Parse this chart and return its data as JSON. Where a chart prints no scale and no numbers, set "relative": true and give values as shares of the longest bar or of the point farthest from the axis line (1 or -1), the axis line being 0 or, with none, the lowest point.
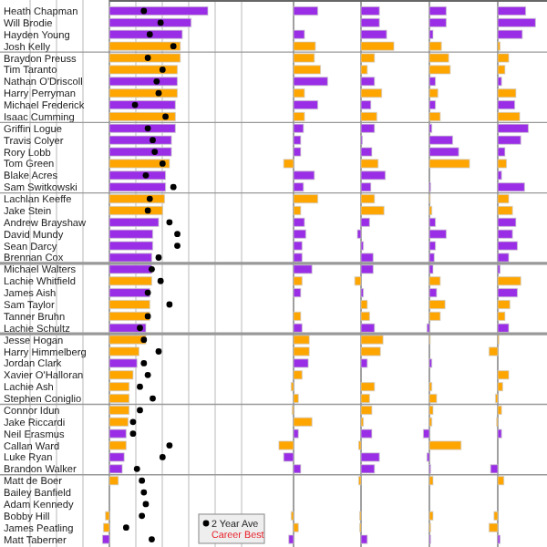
{
  "chart_data": [
    {
      "type": "bar",
      "orientation": "horizontal",
      "relative": true,
      "grid": true,
      "legend": "bottom right",
      "marker": "circle",
      "annotations": [
        "Career Best"
      ],
      "categories": [
        "Heath Chapman",
        "Will Brodie",
        "Hayden Young",
        "Josh Kelly",
        "Braydon Preuss",
        "Tim Taranto",
        "Nathan O'Driscoll",
        "Harry Perryman",
        "Michael Frederick",
        "Isaac Cumming",
        "Griffin Logue",
        "Travis Colyer",
        "Rory Lobb",
        "Tom Green",
        "Blake Acres",
        "Sam Switkowski",
        "Lachlan Keeffe",
        "Jake Stein",
        "Andrew Brayshaw",
        "David Mundy",
        "Sean Darcy",
        "Brennan Cox",
        "Michael Walters",
        "Lachie Whitfield",
        "James Aish",
        "Sam Taylor",
        "Tanner Bruhn",
        "Lachie Schultz",
        "Jesse Hogan",
        "Harry Himmelberg",
        "Jordan Clark",
        "Xavier O'Halloran",
        "Lachie Ash",
        "Stephen Coniglio",
        "Connor Idun",
        "Jake Riccardi",
        "Neil Erasmus",
        "Callan Ward",
        "Luke Ryan",
        "Brandon Walker",
        "Matt de Boer",
        "Bailey Banfield",
        "Adam Kennedy",
        "Bobby Hill",
        "James Peatling",
        "Matt Taberner"
      ],
      "series": [
        {
          "colors": [
            "#9a2ee6",
            "#9a2ee6",
            "#9a2ee6",
            "#ffa500",
            "#ffa500",
            "#ffa500",
            "#9a2ee6",
            "#ffa500",
            "#9a2ee6",
            "#ffa500",
            "#9a2ee6",
            "#9a2ee6",
            "#9a2ee6",
            "#ffa500",
            "#9a2ee6",
            "#9a2ee6",
            "#ffa500",
            "#ffa500",
            "#9a2ee6",
            "#9a2ee6",
            "#9a2ee6",
            "#9a2ee6",
            "#9a2ee6",
            "#ffa500",
            "#9a2ee6",
            "#ffa500",
            "#ffa500",
            "#9a2ee6",
            "#ffa500",
            "#ffa500",
            "#9a2ee6",
            "#ffa500",
            "#ffa500",
            "#ffa500",
            "#ffa500",
            "#ffa500",
            "#9a2ee6",
            "#ffa500",
            "#9a2ee6",
            "#9a2ee6",
            "#ffa500",
            null,
            null,
            "#ffa500",
            "#ffa500",
            "#9a2ee6"
          ],
          "values": [
            1,
            0.83,
            0.74,
            0.72,
            0.72,
            0.69,
            0.69,
            0.69,
            0.67,
            0.67,
            0.67,
            0.63,
            0.63,
            0.61,
            0.57,
            0.57,
            0.56,
            0.54,
            0.5,
            0.44,
            0.44,
            0.43,
            0.43,
            0.43,
            0.41,
            0.41,
            0.41,
            0.37,
            0.37,
            0.3,
            0.28,
            0.24,
            0.2,
            0.2,
            0.2,
            0.19,
            0.17,
            0.17,
            0.15,
            0.13,
            0.09,
            null,
            null,
            -0.04,
            -0.06,
            -0.07
          ]
        },
        {
          "type": "scatter",
          "name": "2 Year Ave",
          "color": "#000000",
          "values": [
            0.35,
            0.52,
            0.41,
            0.65,
            0.39,
            0.54,
            0.48,
            0.5,
            0.26,
            0.57,
            0.39,
            0.44,
            0.46,
            0.54,
            0.37,
            0.65,
            0.41,
            0.39,
            0.61,
            0.69,
            0.69,
            0.5,
            0.43,
            0.52,
            0.39,
            0.61,
            0.39,
            0.31,
            0.35,
            0.5,
            0.35,
            0.39,
            0.31,
            0.44,
            0.31,
            0.24,
            0.24,
            0.61,
            0.54,
            0.28,
            0.33,
            0.35,
            0.37,
            0.33,
            0.17,
            0.43
          ]
        }
      ]
    },
    {
      "type": "bar",
      "orientation": "horizontal",
      "relative": true,
      "colors": [
        "#9a2ee6",
        null,
        "#9a2ee6",
        "#ffa500",
        "#ffa500",
        "#ffa500",
        "#9a2ee6",
        "#ffa500",
        "#9a2ee6",
        "#ffa500",
        "#9a2ee6",
        "#9a2ee6",
        "#9a2ee6",
        "#ffa500",
        "#9a2ee6",
        "#9a2ee6",
        "#ffa500",
        "#ffa500",
        "#9a2ee6",
        "#9a2ee6",
        "#9a2ee6",
        "#9a2ee6",
        "#9a2ee6",
        "#ffa500",
        "#9a2ee6",
        null,
        "#ffa500",
        "#9a2ee6",
        "#ffa500",
        "#ffa500",
        "#9a2ee6",
        "#ffa500",
        "#ffa500",
        "#ffa500",
        "#ffa500",
        "#ffa500",
        "#9a2ee6",
        "#ffa500",
        "#9a2ee6",
        "#9a2ee6",
        null,
        null,
        null,
        "#ffa500",
        "#ffa500",
        "#9a2ee6"
      ],
      "values": [
        0.71,
        null,
        0.32,
        0.64,
        0.61,
        0.79,
        1,
        0.32,
        0.71,
        0.32,
        0.29,
        0.21,
        0.21,
        -0.29,
        0.61,
        0.29,
        0.71,
        0.21,
        0.32,
        0.36,
        0.25,
        0.25,
        0.54,
        0.25,
        0.21,
        null,
        0.21,
        0.25,
        0.46,
        0.46,
        0.43,
        0.25,
        -0.07,
        0.14,
        -0.04,
        0.54,
        0.14,
        -0.43,
        -0.29,
        0.21,
        null,
        null,
        null,
        -0.07,
        0.14,
        -0.14
      ]
    },
    {
      "type": "bar",
      "orientation": "horizontal",
      "relative": true,
      "colors": [
        "#9a2ee6",
        "#9a2ee6",
        "#9a2ee6",
        "#ffa500",
        "#ffa500",
        "#ffa500",
        "#9a2ee6",
        "#ffa500",
        "#9a2ee6",
        "#ffa500",
        "#9a2ee6",
        "#9a2ee6",
        "#9a2ee6",
        "#ffa500",
        "#9a2ee6",
        "#9a2ee6",
        "#ffa500",
        "#ffa500",
        "#9a2ee6",
        "#9a2ee6",
        "#9a2ee6",
        "#9a2ee6",
        "#9a2ee6",
        "#ffa500",
        "#9a2ee6",
        "#ffa500",
        "#ffa500",
        "#9a2ee6",
        "#ffa500",
        "#ffa500",
        "#9a2ee6",
        null,
        "#ffa500",
        "#ffa500",
        "#ffa500",
        "#ffa500",
        "#9a2ee6",
        "#ffa500",
        "#9a2ee6",
        "#9a2ee6",
        "#ffa500",
        null,
        null,
        "#ffa500",
        "#ffa500",
        "#9a2ee6"
      ],
      "values": [
        0.56,
        0.56,
        0.78,
        1,
        0.41,
        0.19,
        0.41,
        0.63,
        0.3,
        0.48,
        0.41,
        0.04,
        0.33,
        0.52,
        0.74,
        0.3,
        0.41,
        0.7,
        0.26,
        -0.11,
        0.07,
        0.37,
        0.37,
        -0.19,
        0.07,
        0.19,
        0.26,
        0.41,
        0.67,
        0.59,
        0.19,
        null,
        0.41,
        0.26,
        0.33,
        0.07,
        0.33,
        -0.07,
        0.56,
        0.41,
        -0.07,
        null,
        null,
        -0.04,
        -0.04,
        0.19
      ]
    },
    {
      "type": "bar",
      "orientation": "horizontal",
      "relative": true,
      "colors": [
        "#9a2ee6",
        "#9a2ee6",
        "#9a2ee6",
        "#ffa500",
        "#ffa500",
        "#ffa500",
        "#9a2ee6",
        "#ffa500",
        "#9a2ee6",
        "#ffa500",
        "#9a2ee6",
        "#9a2ee6",
        "#9a2ee6",
        "#ffa500",
        null,
        "#9a2ee6",
        "#ffa500",
        "#ffa500",
        "#9a2ee6",
        "#9a2ee6",
        "#9a2ee6",
        "#9a2ee6",
        "#9a2ee6",
        "#ffa500",
        "#9a2ee6",
        "#ffa500",
        "#ffa500",
        "#9a2ee6",
        "#ffa500",
        null,
        "#9a2ee6",
        null,
        "#ffa500",
        "#ffa500",
        "#ffa500",
        "#ffa500",
        "#9a2ee6",
        "#ffa500",
        "#9a2ee6",
        "#9a2ee6",
        "#ffa500",
        null,
        null,
        "#ffa500",
        "#ffa500",
        "#9a2ee6"
      ],
      "values": [
        0.42,
        0.42,
        0.09,
        0.3,
        0.48,
        0.52,
        0.15,
        0.21,
        0.15,
        0.27,
        0.06,
        0.58,
        0.73,
        1,
        null,
        0.03,
        0.02,
        0.06,
        0.15,
        0.42,
        0.15,
        0.12,
        0.09,
        0.27,
        0.18,
        0.39,
        0.27,
        -0.06,
        0.02,
        null,
        0.06,
        null,
        0.06,
        0.18,
        0.09,
        0.06,
        -0.15,
        0.79,
        -0.06,
        0.03,
        0.09,
        null,
        null,
        0.09,
        0.03,
        0.03
      ]
    },
    {
      "type": "bar",
      "orientation": "horizontal",
      "relative": true,
      "colors": [
        "#9a2ee6",
        "#9a2ee6",
        "#9a2ee6",
        "#ffa500",
        "#ffa500",
        "#ffa500",
        "#9a2ee6",
        "#ffa500",
        "#9a2ee6",
        "#ffa500",
        "#9a2ee6",
        "#9a2ee6",
        "#9a2ee6",
        "#ffa500",
        "#9a2ee6",
        "#9a2ee6",
        "#ffa500",
        "#ffa500",
        "#9a2ee6",
        "#9a2ee6",
        "#9a2ee6",
        "#9a2ee6",
        "#9a2ee6",
        "#ffa500",
        "#9a2ee6",
        "#ffa500",
        "#ffa500",
        "#9a2ee6",
        "#ffa500",
        "#ffa500",
        null,
        "#ffa500",
        "#ffa500",
        "#ffa500",
        "#ffa500",
        "#ffa500",
        "#9a2ee6",
        null,
        null,
        "#9a2ee6",
        "#ffa500",
        null,
        null,
        "#ffa500",
        "#ffa500",
        "#9a2ee6"
      ],
      "values": [
        0.74,
        1,
        0.65,
        0.06,
        0.29,
        0.19,
        0.1,
        0.48,
        0.45,
        0.58,
        0.81,
        0.61,
        0.19,
        0.23,
        0.1,
        0.71,
        0.29,
        0.39,
        0.48,
        0.39,
        0.52,
        0.29,
        0.06,
        0.61,
        0.52,
        0.32,
        0.19,
        0.29,
        0.03,
        -0.23,
        null,
        0.29,
        0.13,
        -0.06,
        0.1,
        -0.03,
        0.1,
        null,
        null,
        -0.19,
        0.16,
        null,
        null,
        -0.1,
        -0.23,
        0.06
      ]
    }
  ]
}
